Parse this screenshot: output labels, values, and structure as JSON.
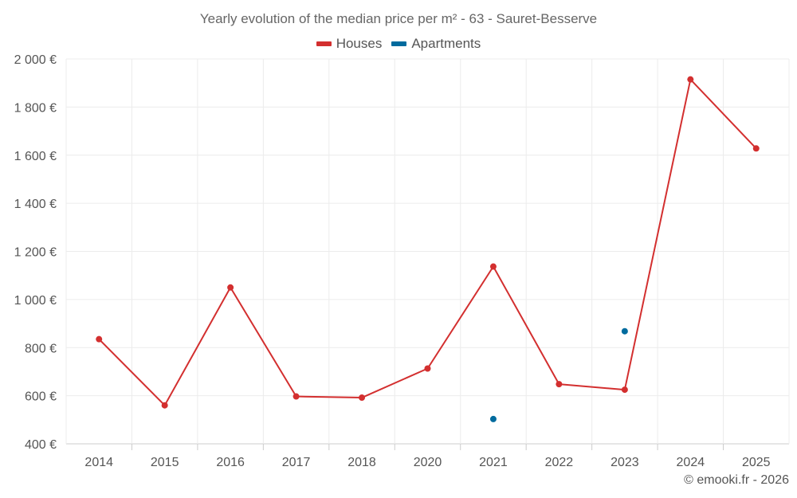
{
  "chart_data": {
    "type": "line",
    "title": "Yearly evolution of the median price per m² - 63 - Sauret-Besserve",
    "categories": [
      "2014",
      "2015",
      "2016",
      "2017",
      "2018",
      "2020",
      "2021",
      "2022",
      "2023",
      "2024",
      "2025"
    ],
    "series": [
      {
        "name": "Houses",
        "color": "#d32f2f",
        "values": [
          835,
          560,
          1050,
          597,
          592,
          713,
          1137,
          648,
          625,
          1915,
          1628
        ]
      },
      {
        "name": "Apartments",
        "color": "#006b9e",
        "values": [
          null,
          null,
          null,
          null,
          null,
          null,
          503,
          null,
          868,
          null,
          null
        ]
      }
    ],
    "y_ticks": [
      400,
      600,
      800,
      1000,
      1200,
      1400,
      1600,
      1800,
      2000
    ],
    "y_tick_labels": [
      "400 €",
      "600 €",
      "800 €",
      "1 000 €",
      "1 200 €",
      "1 400 €",
      "1 600 €",
      "1 800 €",
      "2 000 €"
    ],
    "ylim": [
      400,
      2000
    ],
    "xlabel": "",
    "ylabel": "",
    "grid": true,
    "legend_position": "top-center"
  },
  "credit": "© emooki.fr - 2026"
}
